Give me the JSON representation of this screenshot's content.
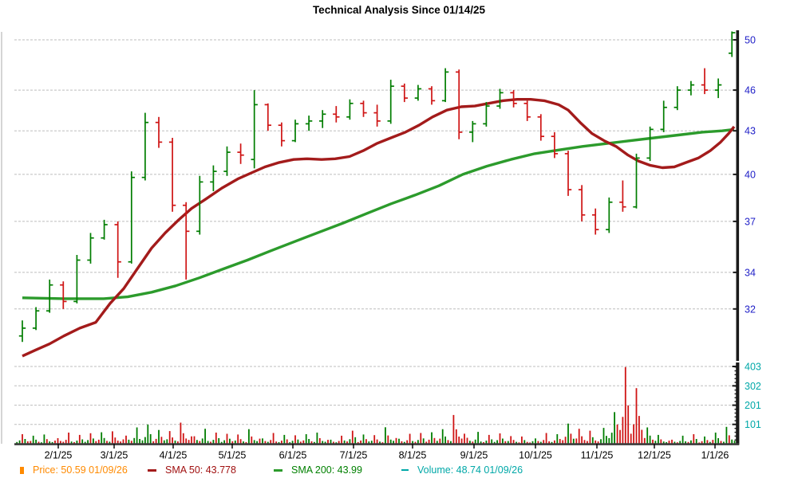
{
  "title": "Technical Analysis Since 01/14/25",
  "legend": {
    "price": "Price: 50.59  01/09/26",
    "sma50": "SMA 50: 43.778",
    "sma200": "SMA 200: 43.99",
    "volume": "Volume: 48.74  01/09/26"
  },
  "colors": {
    "up_bar": "#007d00",
    "down_bar": "#cf1414",
    "sma50_line": "#a31b1b",
    "sma200_line": "#2c9b2c",
    "price_axis_label": "#2121c8",
    "volume_axis_label": "#00a8a8",
    "x_axis_label": "#000000",
    "legend_price_text": "#ff8a00",
    "legend_sma50_text": "#a01010",
    "legend_sma200_text": "#008000",
    "legend_volume_text": "#00a8a8",
    "gridline": "#bdbdbd",
    "axis": "#1a1a1a"
  },
  "chart_data": {
    "type": "ohlc",
    "title": "Technical Analysis Since 01/14/25",
    "start_date": "01/14/25",
    "end_date": "01/09/26",
    "last_price": 50.59,
    "sma50_value": 43.778,
    "sma200_value": 43.99,
    "volume_value": 48.74,
    "price_axis": {
      "scale": "log",
      "ticks": [
        50,
        46,
        43,
        40,
        37,
        34,
        32
      ],
      "side": "right"
    },
    "volume_axis": {
      "ticks": [
        403,
        302,
        201,
        101
      ],
      "side": "right"
    },
    "x_axis": {
      "tick_labels": [
        "2/1/25",
        "3/1/25",
        "4/1/25",
        "5/1/25",
        "6/1/25",
        "7/1/25",
        "8/1/25",
        "9/1/25",
        "10/1/25",
        "11/1/25",
        "12/1/25",
        "1/1/26"
      ],
      "tick_x": [
        73,
        143,
        217,
        291,
        367,
        443,
        517,
        594,
        671,
        748,
        820,
        896
      ]
    },
    "ohlc_weekly": [
      [
        30.6,
        31.4,
        30.3,
        31.0
      ],
      [
        31.0,
        32.1,
        30.9,
        31.9
      ],
      [
        31.9,
        33.6,
        31.8,
        33.3
      ],
      [
        33.3,
        33.5,
        32.0,
        32.4
      ],
      [
        32.4,
        35.0,
        32.3,
        34.7
      ],
      [
        34.7,
        36.3,
        34.5,
        36.0
      ],
      [
        36.0,
        37.1,
        35.9,
        36.8
      ],
      [
        36.8,
        37.0,
        33.7,
        34.6
      ],
      [
        34.6,
        40.2,
        34.5,
        39.8
      ],
      [
        39.8,
        44.3,
        39.6,
        43.6
      ],
      [
        43.6,
        44.0,
        41.8,
        42.2
      ],
      [
        42.2,
        42.5,
        37.6,
        38.0
      ],
      [
        38.0,
        38.2,
        33.6,
        36.4
      ],
      [
        36.4,
        39.9,
        36.2,
        39.5
      ],
      [
        39.5,
        40.6,
        38.9,
        40.2
      ],
      [
        40.2,
        41.9,
        39.9,
        41.5
      ],
      [
        41.5,
        42.1,
        40.7,
        41.3
      ],
      [
        41.0,
        46.0,
        40.4,
        44.9
      ],
      [
        44.9,
        45.0,
        43.0,
        43.4
      ],
      [
        43.4,
        43.6,
        41.9,
        42.3
      ],
      [
        42.3,
        43.8,
        42.2,
        43.5
      ],
      [
        43.5,
        44.1,
        43.0,
        43.7
      ],
      [
        43.7,
        44.5,
        43.2,
        44.2
      ],
      [
        44.2,
        44.8,
        43.6,
        44.0
      ],
      [
        44.0,
        45.3,
        43.8,
        45.0
      ],
      [
        45.0,
        45.2,
        44.0,
        44.3
      ],
      [
        44.3,
        44.9,
        43.3,
        43.7
      ],
      [
        43.7,
        46.8,
        43.5,
        46.3
      ],
      [
        46.3,
        46.5,
        45.1,
        45.4
      ],
      [
        45.4,
        46.4,
        45.2,
        46.1
      ],
      [
        46.1,
        46.3,
        44.9,
        45.2
      ],
      [
        45.2,
        47.7,
        45.1,
        47.4
      ],
      [
        47.4,
        47.6,
        42.4,
        42.9
      ],
      [
        42.9,
        43.7,
        42.2,
        43.5
      ],
      [
        43.5,
        45.1,
        43.3,
        44.8
      ],
      [
        44.8,
        46.1,
        44.6,
        45.8
      ],
      [
        45.8,
        46.0,
        44.7,
        45.0
      ],
      [
        45.0,
        45.2,
        43.7,
        44.0
      ],
      [
        44.0,
        44.2,
        42.3,
        42.6
      ],
      [
        42.6,
        42.9,
        41.1,
        41.4
      ],
      [
        41.4,
        41.6,
        38.6,
        39.0
      ],
      [
        39.0,
        39.3,
        37.0,
        37.4
      ],
      [
        37.4,
        37.8,
        36.2,
        36.5
      ],
      [
        36.5,
        38.5,
        36.3,
        38.2
      ],
      [
        38.2,
        39.6,
        37.6,
        37.9
      ],
      [
        37.9,
        41.4,
        37.8,
        41.1
      ],
      [
        41.1,
        43.3,
        40.9,
        43.1
      ],
      [
        43.1,
        45.2,
        42.9,
        44.7
      ],
      [
        44.7,
        46.3,
        44.5,
        46.0
      ],
      [
        46.0,
        46.7,
        45.6,
        46.4
      ],
      [
        46.4,
        47.7,
        45.7,
        46.0
      ],
      [
        46.0,
        46.9,
        45.4,
        46.4
      ],
      [
        48.9,
        50.7,
        48.6,
        50.59
      ]
    ],
    "volume_weekly": [
      50,
      42,
      48,
      58,
      46,
      55,
      60,
      65,
      85,
      100,
      72,
      66,
      110,
      78,
      58,
      52,
      48,
      76,
      56,
      46,
      44,
      50,
      58,
      42,
      68,
      48,
      45,
      86,
      52,
      56,
      60,
      76,
      150,
      62,
      46,
      54,
      40,
      38,
      56,
      50,
      105,
      78,
      68,
      165,
      400,
      290,
      85,
      46,
      42,
      50,
      38,
      58,
      88
    ],
    "volume_red_weeks": [
      3,
      7,
      12,
      32,
      41,
      44,
      45
    ],
    "volume_green_weeks": [
      9,
      43
    ],
    "sma50_points": [
      [
        28,
        29.6
      ],
      [
        45,
        29.9
      ],
      [
        62,
        30.2
      ],
      [
        80,
        30.6
      ],
      [
        100,
        31.0
      ],
      [
        120,
        31.3
      ],
      [
        138,
        32.3
      ],
      [
        155,
        33.1
      ],
      [
        172,
        34.2
      ],
      [
        190,
        35.4
      ],
      [
        207,
        36.3
      ],
      [
        224,
        37.1
      ],
      [
        240,
        37.8
      ],
      [
        258,
        38.4
      ],
      [
        278,
        39.1
      ],
      [
        298,
        39.7
      ],
      [
        315,
        40.1
      ],
      [
        332,
        40.5
      ],
      [
        350,
        40.8
      ],
      [
        368,
        41.0
      ],
      [
        385,
        41.05
      ],
      [
        403,
        41.0
      ],
      [
        420,
        41.05
      ],
      [
        438,
        41.2
      ],
      [
        455,
        41.6
      ],
      [
        472,
        42.1
      ],
      [
        490,
        42.5
      ],
      [
        508,
        42.9
      ],
      [
        525,
        43.4
      ],
      [
        542,
        44.0
      ],
      [
        560,
        44.5
      ],
      [
        578,
        44.75
      ],
      [
        595,
        44.8
      ],
      [
        612,
        45.0
      ],
      [
        630,
        45.2
      ],
      [
        648,
        45.3
      ],
      [
        665,
        45.3
      ],
      [
        682,
        45.2
      ],
      [
        700,
        44.9
      ],
      [
        712,
        44.5
      ],
      [
        727,
        43.6
      ],
      [
        742,
        42.8
      ],
      [
        757,
        42.3
      ],
      [
        772,
        41.9
      ],
      [
        787,
        41.3
      ],
      [
        800,
        40.9
      ],
      [
        815,
        40.6
      ],
      [
        830,
        40.45
      ],
      [
        845,
        40.5
      ],
      [
        860,
        40.8
      ],
      [
        875,
        41.1
      ],
      [
        890,
        41.6
      ],
      [
        903,
        42.2
      ],
      [
        913,
        42.8
      ],
      [
        920,
        43.3
      ]
    ],
    "sma200_points": [
      [
        28,
        32.6
      ],
      [
        80,
        32.55
      ],
      [
        130,
        32.55
      ],
      [
        160,
        32.65
      ],
      [
        190,
        32.9
      ],
      [
        220,
        33.25
      ],
      [
        250,
        33.7
      ],
      [
        280,
        34.2
      ],
      [
        310,
        34.7
      ],
      [
        340,
        35.25
      ],
      [
        370,
        35.8
      ],
      [
        400,
        36.35
      ],
      [
        430,
        36.9
      ],
      [
        460,
        37.5
      ],
      [
        490,
        38.1
      ],
      [
        520,
        38.65
      ],
      [
        550,
        39.25
      ],
      [
        580,
        40.0
      ],
      [
        610,
        40.55
      ],
      [
        640,
        41.0
      ],
      [
        670,
        41.4
      ],
      [
        700,
        41.65
      ],
      [
        730,
        41.9
      ],
      [
        760,
        42.1
      ],
      [
        790,
        42.3
      ],
      [
        820,
        42.5
      ],
      [
        850,
        42.7
      ],
      [
        880,
        42.9
      ],
      [
        905,
        43.0
      ],
      [
        920,
        43.1
      ]
    ]
  }
}
